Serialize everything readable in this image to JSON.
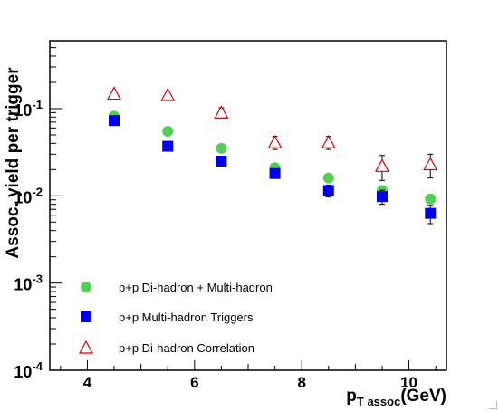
{
  "chart_data": {
    "type": "scatter",
    "title": "",
    "xlabel": "p",
    "xlabel_sub": "T assoc",
    "xlabel_unit": "(GeV)",
    "ylabel": "Assoc. yield per trigger",
    "xlim": [
      3.3,
      10.7
    ],
    "ylim": [
      0.0001,
      0.6
    ],
    "yscale": "log",
    "x_ticks": [
      4,
      6,
      8,
      10
    ],
    "y_ticks": [
      {
        "value": 0.0001,
        "base": "10",
        "exp": "-4"
      },
      {
        "value": 0.001,
        "base": "10",
        "exp": "-3"
      },
      {
        "value": 0.01,
        "base": "10",
        "exp": "-2"
      },
      {
        "value": 0.1,
        "base": "10",
        "exp": "-1"
      }
    ],
    "grid": false,
    "legend_position": "bottom-left",
    "series": [
      {
        "name": "p+p Di-hadron + Multi-hadron",
        "marker": "circle",
        "color": "#55cc55",
        "x": [
          4.5,
          5.5,
          6.5,
          7.5,
          8.5,
          9.5,
          10.4
        ],
        "y": [
          0.082,
          0.055,
          0.035,
          0.021,
          0.016,
          0.0115,
          0.0092
        ],
        "err": [
          0,
          0,
          0,
          0,
          0,
          0,
          0
        ]
      },
      {
        "name": "p+p Multi-hadron Triggers",
        "marker": "square",
        "color": "#0000ee",
        "x": [
          4.5,
          5.5,
          6.5,
          7.5,
          8.5,
          9.5,
          10.4
        ],
        "y": [
          0.073,
          0.037,
          0.025,
          0.018,
          0.0115,
          0.0098,
          0.0063
        ],
        "err": [
          0.003,
          0.002,
          0.002,
          0.0015,
          0.0018,
          0.0018,
          0.0015
        ]
      },
      {
        "name": "p+p Di-hadron Correlation",
        "marker": "triangle-open",
        "color": "#dd0000",
        "x": [
          4.5,
          5.5,
          6.5,
          7.5,
          8.5,
          9.5,
          10.4
        ],
        "y": [
          0.148,
          0.143,
          0.09,
          0.041,
          0.041,
          0.022,
          0.023
        ],
        "err": [
          0.008,
          0.008,
          0.012,
          0.007,
          0.007,
          0.007,
          0.007
        ]
      }
    ]
  }
}
